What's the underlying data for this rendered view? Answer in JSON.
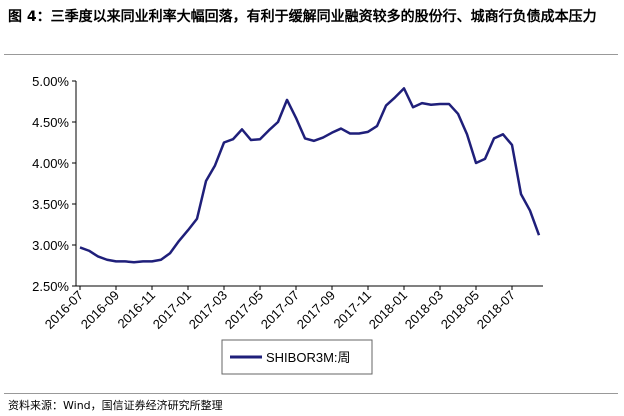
{
  "chart_data": {
    "type": "line",
    "title_label": "图 4：",
    "title": "三季度以来同业利率大幅回落，有利于缓解同业融资较多的股份行、城商行负债成本压力",
    "source": "资料来源：Wind，国信证券经济研究所整理",
    "categories": [
      "2016-07",
      null,
      null,
      null,
      "2016-09",
      null,
      null,
      null,
      "2016-11",
      null,
      null,
      null,
      "2017-01",
      null,
      null,
      null,
      "2017-03",
      null,
      null,
      null,
      "2017-05",
      null,
      null,
      null,
      "2017-07",
      null,
      null,
      null,
      "2017-09",
      null,
      null,
      null,
      "2017-11",
      null,
      null,
      null,
      "2018-01",
      null,
      null,
      null,
      "2018-03",
      null,
      null,
      null,
      "2018-05",
      null,
      null,
      null,
      "2018-07",
      null,
      null,
      null
    ],
    "series": [
      {
        "name": "SHIBOR3M:周",
        "color": "#1f1f7a",
        "values": [
          2.97,
          2.93,
          2.86,
          2.82,
          2.8,
          2.8,
          2.79,
          2.8,
          2.8,
          2.82,
          2.9,
          3.05,
          3.18,
          3.32,
          3.78,
          3.97,
          4.25,
          4.29,
          4.41,
          4.28,
          4.29,
          4.4,
          4.5,
          4.77,
          4.55,
          4.3,
          4.27,
          4.31,
          4.37,
          4.42,
          4.36,
          4.36,
          4.38,
          4.45,
          4.7,
          4.8,
          4.91,
          4.68,
          4.73,
          4.71,
          4.72,
          4.72,
          4.6,
          4.35,
          4.0,
          4.05,
          4.3,
          4.35,
          4.22,
          3.62,
          3.42,
          3.12
        ]
      }
    ],
    "ylim": [
      2.5,
      5.0
    ],
    "yticks": [
      {
        "value": 2.5,
        "label": "2.50%"
      },
      {
        "value": 3.0,
        "label": "3.00%"
      },
      {
        "value": 3.5,
        "label": "3.50%"
      },
      {
        "value": 4.0,
        "label": "4.00%"
      },
      {
        "value": 4.5,
        "label": "4.50%"
      },
      {
        "value": 5.0,
        "label": "5.00%"
      }
    ],
    "grid": false
  }
}
